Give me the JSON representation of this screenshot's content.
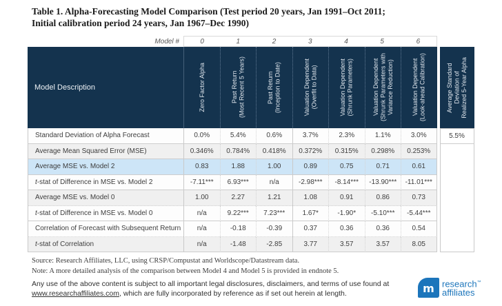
{
  "title": "Table 1. Alpha-Forecasting Model Comparison (Test period 20 years, Jan 1991–Oct 2011;\nInitial calibration period 24 years, Jan 1967–Dec 1990)",
  "table": {
    "model_row_label": "Model #",
    "model_numbers": [
      "0",
      "1",
      "2",
      "3",
      "4",
      "5",
      "6"
    ],
    "description_header": "Model Description",
    "column_headers": [
      "Zero Factor Alpha",
      "Past Return\n(Most Recent 5 Years)",
      "Past Return\n(Inception to Date)",
      "Valuation Dependent\n(Overfit to Data)",
      "Valuation Dependent\n(Shrunk Parameters)",
      "Valuation Dependent\n(Shrunk Parameters with\nVariance Reduction)",
      "Valuation Dependent\n(Look-ahead Calibration)"
    ],
    "avg_sd_header": "Average Standard\nDeviation of\nRealized 5-Year Alpha",
    "rows": [
      {
        "label": "Standard Deviation of Alpha Forecast",
        "values": [
          "0.0%",
          "5.4%",
          "0.6%",
          "3.7%",
          "2.3%",
          "1.1%",
          "3.0%"
        ],
        "avg_sd": "5.5%",
        "highlight": false
      },
      {
        "label": "Average Mean Squared Error (MSE)",
        "values": [
          "0.346%",
          "0.784%",
          "0.418%",
          "0.372%",
          "0.315%",
          "0.298%",
          "0.253%"
        ],
        "avg_sd": "",
        "highlight": false
      },
      {
        "label": "Average MSE vs. Model 2",
        "values": [
          "0.83",
          "1.88",
          "1.00",
          "0.89",
          "0.75",
          "0.71",
          "0.61"
        ],
        "avg_sd": "",
        "highlight": true
      },
      {
        "label": "t-stat of Difference in MSE vs. Model 2",
        "values": [
          "-7.11***",
          "6.93***",
          "n/a",
          "-2.98***",
          "-8.14***",
          "-13.90***",
          "-11.01***"
        ],
        "avg_sd": "",
        "highlight": false
      },
      {
        "label": "Average MSE vs. Model 0",
        "values": [
          "1.00",
          "2.27",
          "1.21",
          "1.08",
          "0.91",
          "0.86",
          "0.73"
        ],
        "avg_sd": "",
        "highlight": false
      },
      {
        "label": "t-stat of Difference in MSE vs. Model 0",
        "values": [
          "n/a",
          "9.22***",
          "7.23***",
          "1.67*",
          "-1.90*",
          "-5.10***",
          "-5.44***"
        ],
        "avg_sd": "",
        "highlight": false
      },
      {
        "label": "Correlation of Forecast with Subsequent Return",
        "values": [
          "n/a",
          "-0.18",
          "-0.39",
          "0.37",
          "0.36",
          "0.36",
          "0.54"
        ],
        "avg_sd": "",
        "highlight": false
      },
      {
        "label": "t-stat of Correlation",
        "values": [
          "n/a",
          "-1.48",
          "-2.85",
          "3.77",
          "3.57",
          "3.57",
          "8.05"
        ],
        "avg_sd": "",
        "highlight": false
      }
    ]
  },
  "footer": {
    "source": "Source: Research Affiliates, LLC, using CRSP/Compustat and Worldscope/Datastream data.",
    "note": "Note: A more detailed analysis of the comparison between Model 4 and Model 5 is provided in endnote 5.",
    "legal_pre": "Any use of the above content is subject to all important legal disclosures, disclaimers, and terms of use found at ",
    "legal_link": "www.researchaffiliates.com",
    "legal_post": ", which are fully incorporated by reference as if set out herein at length."
  },
  "logo": {
    "monogram": "m",
    "line1": "research",
    "trademark": "™",
    "line2": "affiliates"
  },
  "colors": {
    "header_navy": "#14334e",
    "highlight_blue": "#cde5f7",
    "brand_blue": "#1c75bb"
  }
}
